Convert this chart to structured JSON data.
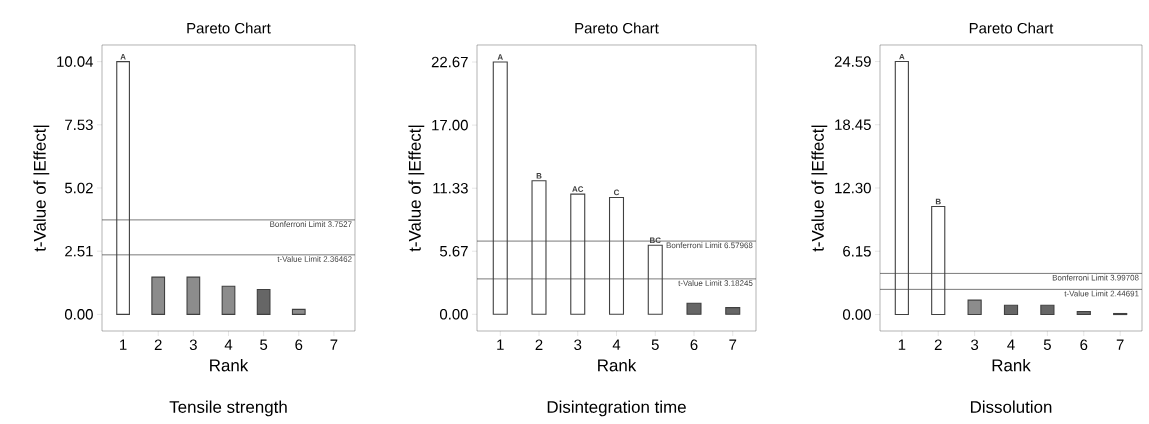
{
  "chart_data": [
    {
      "type": "bar",
      "title": "Pareto Chart",
      "xlabel": "Rank",
      "ylabel": "t-Value of |Effect|",
      "categories": [
        "1",
        "2",
        "3",
        "4",
        "5",
        "6",
        "7"
      ],
      "values": [
        10.04,
        1.48,
        1.48,
        1.12,
        0.99,
        0.2,
        0
      ],
      "colors": [
        "#ffffff",
        "#8c8c8c",
        "#8c8c8c",
        "#8c8c8c",
        "#666666",
        "#8c8c8c",
        "#8c8c8c"
      ],
      "ylim": [
        -0.66,
        10.7
      ],
      "yticks": [
        {
          "value": 0,
          "label": "0.00"
        },
        {
          "value": 2.51,
          "label": "2.51"
        },
        {
          "value": 5.02,
          "label": "5.02"
        },
        {
          "value": 7.53,
          "label": "7.53"
        },
        {
          "value": 10.04,
          "label": "10.04"
        }
      ],
      "ref_lines": [
        {
          "axis": "y",
          "value": 3.7527,
          "label": "Bonferroni Limit 3.7527",
          "color": "#404040"
        },
        {
          "axis": "y",
          "value": 2.36462,
          "label": "t-Value Limit 2.36462",
          "color": "#404040"
        }
      ],
      "annotations": [
        {
          "text": "A",
          "x": "1",
          "y": 10.04
        },
        "Tensile strength"
      ],
      "grid": false
    },
    {
      "type": "bar",
      "title": "Pareto Chart",
      "xlabel": "Rank",
      "ylabel": "t-Value of |Effect|",
      "categories": [
        "1",
        "2",
        "3",
        "4",
        "5",
        "6",
        "7"
      ],
      "values": [
        22.67,
        12.0,
        10.8,
        10.5,
        6.2,
        1.0,
        0.6
      ],
      "colors": [
        "#ffffff",
        "#ffffff",
        "#ffffff",
        "#ffffff",
        "#ffffff",
        "#666666",
        "#666666"
      ],
      "ylim": [
        -1.5,
        24.2
      ],
      "yticks": [
        {
          "value": 0,
          "label": "0.00"
        },
        {
          "value": 5.67,
          "label": "5.67"
        },
        {
          "value": 11.33,
          "label": "11.33"
        },
        {
          "value": 17.0,
          "label": "17.00"
        },
        {
          "value": 22.67,
          "label": "22.67"
        }
      ],
      "ref_lines": [
        {
          "axis": "y",
          "value": 6.57968,
          "label": "Bonferroni Limit 6.57968",
          "color": "#404040"
        },
        {
          "axis": "y",
          "value": 3.18245,
          "label": "t-Value Limit 3.18245",
          "color": "#404040"
        }
      ],
      "annotations": [
        {
          "text": "A",
          "x": "1",
          "y": 22.67
        },
        {
          "text": "B",
          "x": "2",
          "y": 12.0
        },
        {
          "text": "AC",
          "x": "3",
          "y": 10.8
        },
        {
          "text": "C",
          "x": "4",
          "y": 10.5
        },
        {
          "text": "BC",
          "x": "5",
          "y": 6.2
        },
        "Disintegration time"
      ],
      "grid": false
    },
    {
      "type": "bar",
      "title": "Pareto Chart",
      "xlabel": "Rank",
      "ylabel": "t-Value of |Effect|",
      "categories": [
        "1",
        "2",
        "3",
        "4",
        "5",
        "6",
        "7"
      ],
      "values": [
        24.59,
        10.5,
        1.4,
        0.9,
        0.9,
        0.3,
        0.1
      ],
      "colors": [
        "#ffffff",
        "#ffffff",
        "#8c8c8c",
        "#666666",
        "#666666",
        "#666666",
        "#666666"
      ],
      "ylim": [
        -1.6,
        26.2
      ],
      "yticks": [
        {
          "value": 0,
          "label": "0.00"
        },
        {
          "value": 6.15,
          "label": "6.15"
        },
        {
          "value": 12.3,
          "label": "12.30"
        },
        {
          "value": 18.45,
          "label": "18.45"
        },
        {
          "value": 24.59,
          "label": "24.59"
        }
      ],
      "ref_lines": [
        {
          "axis": "y",
          "value": 3.99708,
          "label": "Bonferroni Limit 3.99708",
          "color": "#404040"
        },
        {
          "axis": "y",
          "value": 2.44691,
          "label": "t-Value Limit 2.44691",
          "color": "#404040"
        }
      ],
      "annotations": [
        {
          "text": "A",
          "x": "1",
          "y": 24.59
        },
        {
          "text": "B",
          "x": "2",
          "y": 10.5
        },
        "Dissolution"
      ],
      "grid": false
    }
  ]
}
